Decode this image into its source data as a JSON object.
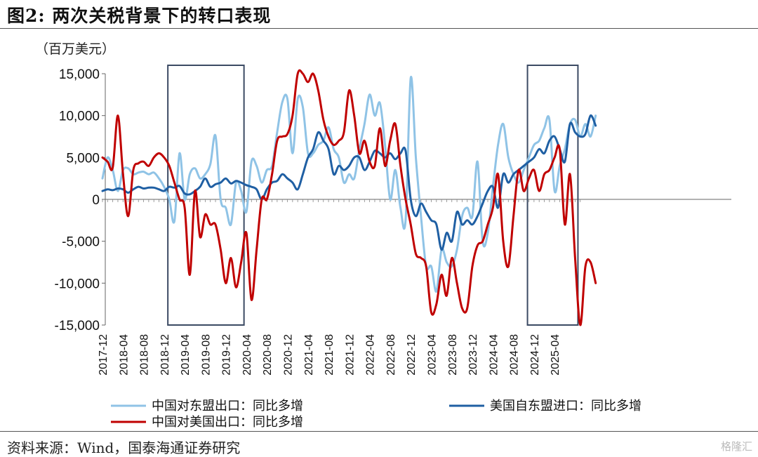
{
  "title": "图2:  两次关税背景下的转口表现",
  "unit_label": "（百万美元）",
  "source": "资料来源：Wind，国泰海通证券研究",
  "watermark": "格隆汇",
  "chart_data": {
    "type": "line",
    "ylim": [
      -15000,
      15000
    ],
    "yticks": [
      15000,
      10000,
      5000,
      0,
      -5000,
      -10000,
      -15000
    ],
    "ytick_labels": [
      "15,000",
      "10,000",
      "5,000",
      "0",
      "-5,000",
      "-10,000",
      "-15,000"
    ],
    "x_tick_labels": [
      "2017-12",
      "2018-04",
      "2018-08",
      "2018-12",
      "2019-04",
      "2019-08",
      "2019-12",
      "2020-04",
      "2020-08",
      "2020-12",
      "2021-04",
      "2021-08",
      "2021-12",
      "2022-04",
      "2022-08",
      "2022-12",
      "2023-04",
      "2023-08",
      "2023-12",
      "2024-04",
      "2024-08",
      "2024-12",
      "2025-04"
    ],
    "x_start": "2017-12",
    "highlight_boxes": [
      {
        "from": "2019-01",
        "to": "2020-03"
      },
      {
        "from": "2024-11",
        "to": "2025-08"
      }
    ],
    "series": [
      {
        "name": "中国对东盟出口：同比多增",
        "color": "#8fc3e6",
        "values": [
          2500,
          5000,
          3500,
          1000,
          3500,
          3700,
          3000,
          3200,
          3300,
          3000,
          3200,
          2500,
          1500,
          0,
          -2600,
          5500,
          0,
          3000,
          3700,
          2500,
          3000,
          4200,
          7600,
          0,
          -1000,
          -3000,
          2000,
          1000,
          -1500,
          4500,
          4000,
          2000,
          3500,
          4000,
          8000,
          11600,
          12000,
          5500,
          12000,
          11000,
          5500,
          5500,
          6500,
          7000,
          8600,
          6000,
          5000,
          2000,
          3000,
          2500,
          6000,
          9000,
          12500,
          10000,
          11500,
          6500,
          0,
          3500,
          -1000,
          -2500,
          14500,
          5000,
          -2000,
          -8000,
          -8000,
          -11000,
          -6000,
          -7500,
          -8000,
          -6000,
          -2000,
          -1000,
          -2000,
          4500,
          -5000,
          -4000,
          1500,
          6500,
          9000,
          5000,
          3000,
          2000,
          3500,
          5000,
          6500,
          7000,
          8500,
          9500,
          1000,
          4000,
          6000,
          9000,
          9500,
          7500,
          9000,
          7500,
          10000
        ]
      },
      {
        "name": "中国对美国出口：同比多增",
        "color": "#c00000",
        "values": [
          5000,
          4500,
          3800,
          10000,
          3000,
          -2000,
          3500,
          4300,
          4500,
          4000,
          5000,
          5500,
          5000,
          4000,
          2000,
          0,
          -1000,
          -9000,
          1000,
          -4500,
          -1800,
          -3000,
          -3000,
          -6000,
          -10000,
          -7000,
          -10500,
          -7500,
          -4000,
          -12000,
          -6000,
          0,
          0,
          3000,
          7000,
          7500,
          7800,
          10000,
          15000,
          15000,
          14000,
          15000,
          13000,
          9500,
          7500,
          6500,
          7000,
          8000,
          13000,
          10000,
          5500,
          7000,
          4500,
          4000,
          8500,
          4000,
          7000,
          9000,
          4000,
          0,
          -3000,
          -6500,
          -7000,
          -8000,
          -13500,
          -12500,
          -9000,
          -11500,
          -7000,
          -10000,
          -13000,
          -13000,
          -8000,
          -5500,
          -5000,
          -3000,
          -1000,
          3000,
          -5000,
          -8000,
          -2000,
          3500,
          1000,
          2500,
          3500,
          1000,
          3000,
          3500,
          5000,
          6000,
          -3000,
          3000,
          -7000,
          -15000,
          -8000,
          -7500,
          -10000
        ]
      },
      {
        "name": "美国自东盟进口：同比多增",
        "color": "#1f5fa3",
        "values": [
          1000,
          1200,
          1100,
          1300,
          1200,
          800,
          1200,
          1500,
          1300,
          1400,
          1400,
          1200,
          1000,
          1500,
          1400,
          1600,
          700,
          600,
          1000,
          1500,
          2500,
          1500,
          1800,
          2000,
          2500,
          1900,
          2200,
          2000,
          1700,
          1500,
          1200,
          0,
          1200,
          2000,
          2200,
          3000,
          2500,
          2000,
          1200,
          3000,
          5000,
          6000,
          8000,
          7000,
          6000,
          3000,
          4000,
          3500,
          4000,
          5000,
          5000,
          3500,
          4500,
          5800,
          5500,
          5000,
          5500,
          4800,
          5500,
          5800,
          0,
          -2000,
          -500,
          -1500,
          -2500,
          -3000,
          -6000,
          -4000,
          -5000,
          -1500,
          -3000,
          -2500,
          -3000,
          -2000,
          -500,
          1000,
          1500,
          -1000,
          3000,
          2000,
          3000,
          3500,
          4000,
          4500,
          5000,
          6000,
          5500,
          7000,
          7500,
          6000,
          4500,
          9000,
          8000,
          7500,
          7800,
          10000,
          8800
        ]
      }
    ]
  }
}
